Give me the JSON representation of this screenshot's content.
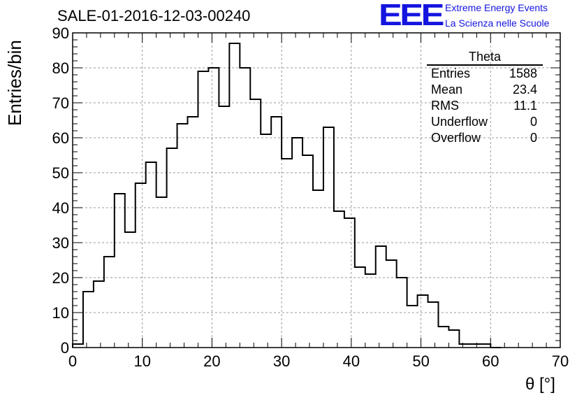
{
  "title": "SALE-01-2016-12-03-00240",
  "logo": {
    "mark": "EEE",
    "line1": "Extreme Energy Events",
    "line2": "La Scienza nelle Scuole",
    "color": "#1414e0"
  },
  "stats": {
    "title": "Theta",
    "rows": [
      {
        "label": "Entries",
        "value": "1588"
      },
      {
        "label": "Mean",
        "value": "23.4"
      },
      {
        "label": "RMS",
        "value": "11.1"
      },
      {
        "label": "Underflow",
        "value": "0"
      },
      {
        "label": "Overflow",
        "value": "0"
      }
    ]
  },
  "chart_data": {
    "type": "histogram",
    "title": "SALE-01-2016-12-03-00240",
    "xlabel": "θ [°]",
    "ylabel": "Entries/bin",
    "xlim": [
      0,
      70
    ],
    "ylim": [
      0,
      90
    ],
    "bin_width": 1.5,
    "x_start": 0,
    "xticks": [
      0,
      10,
      20,
      30,
      40,
      50,
      60,
      70
    ],
    "yticks": [
      0,
      10,
      20,
      30,
      40,
      50,
      60,
      70,
      80,
      90
    ],
    "values": [
      1,
      16,
      19,
      26,
      44,
      33,
      47,
      53,
      43,
      57,
      64,
      66,
      79,
      80,
      69,
      87,
      80,
      71,
      61,
      66,
      54,
      60,
      55,
      45,
      63,
      39,
      37,
      23,
      21,
      29,
      25,
      20,
      12,
      15,
      13,
      6,
      5,
      1,
      1,
      1,
      0
    ],
    "grid": true,
    "line_color": "#000000"
  }
}
